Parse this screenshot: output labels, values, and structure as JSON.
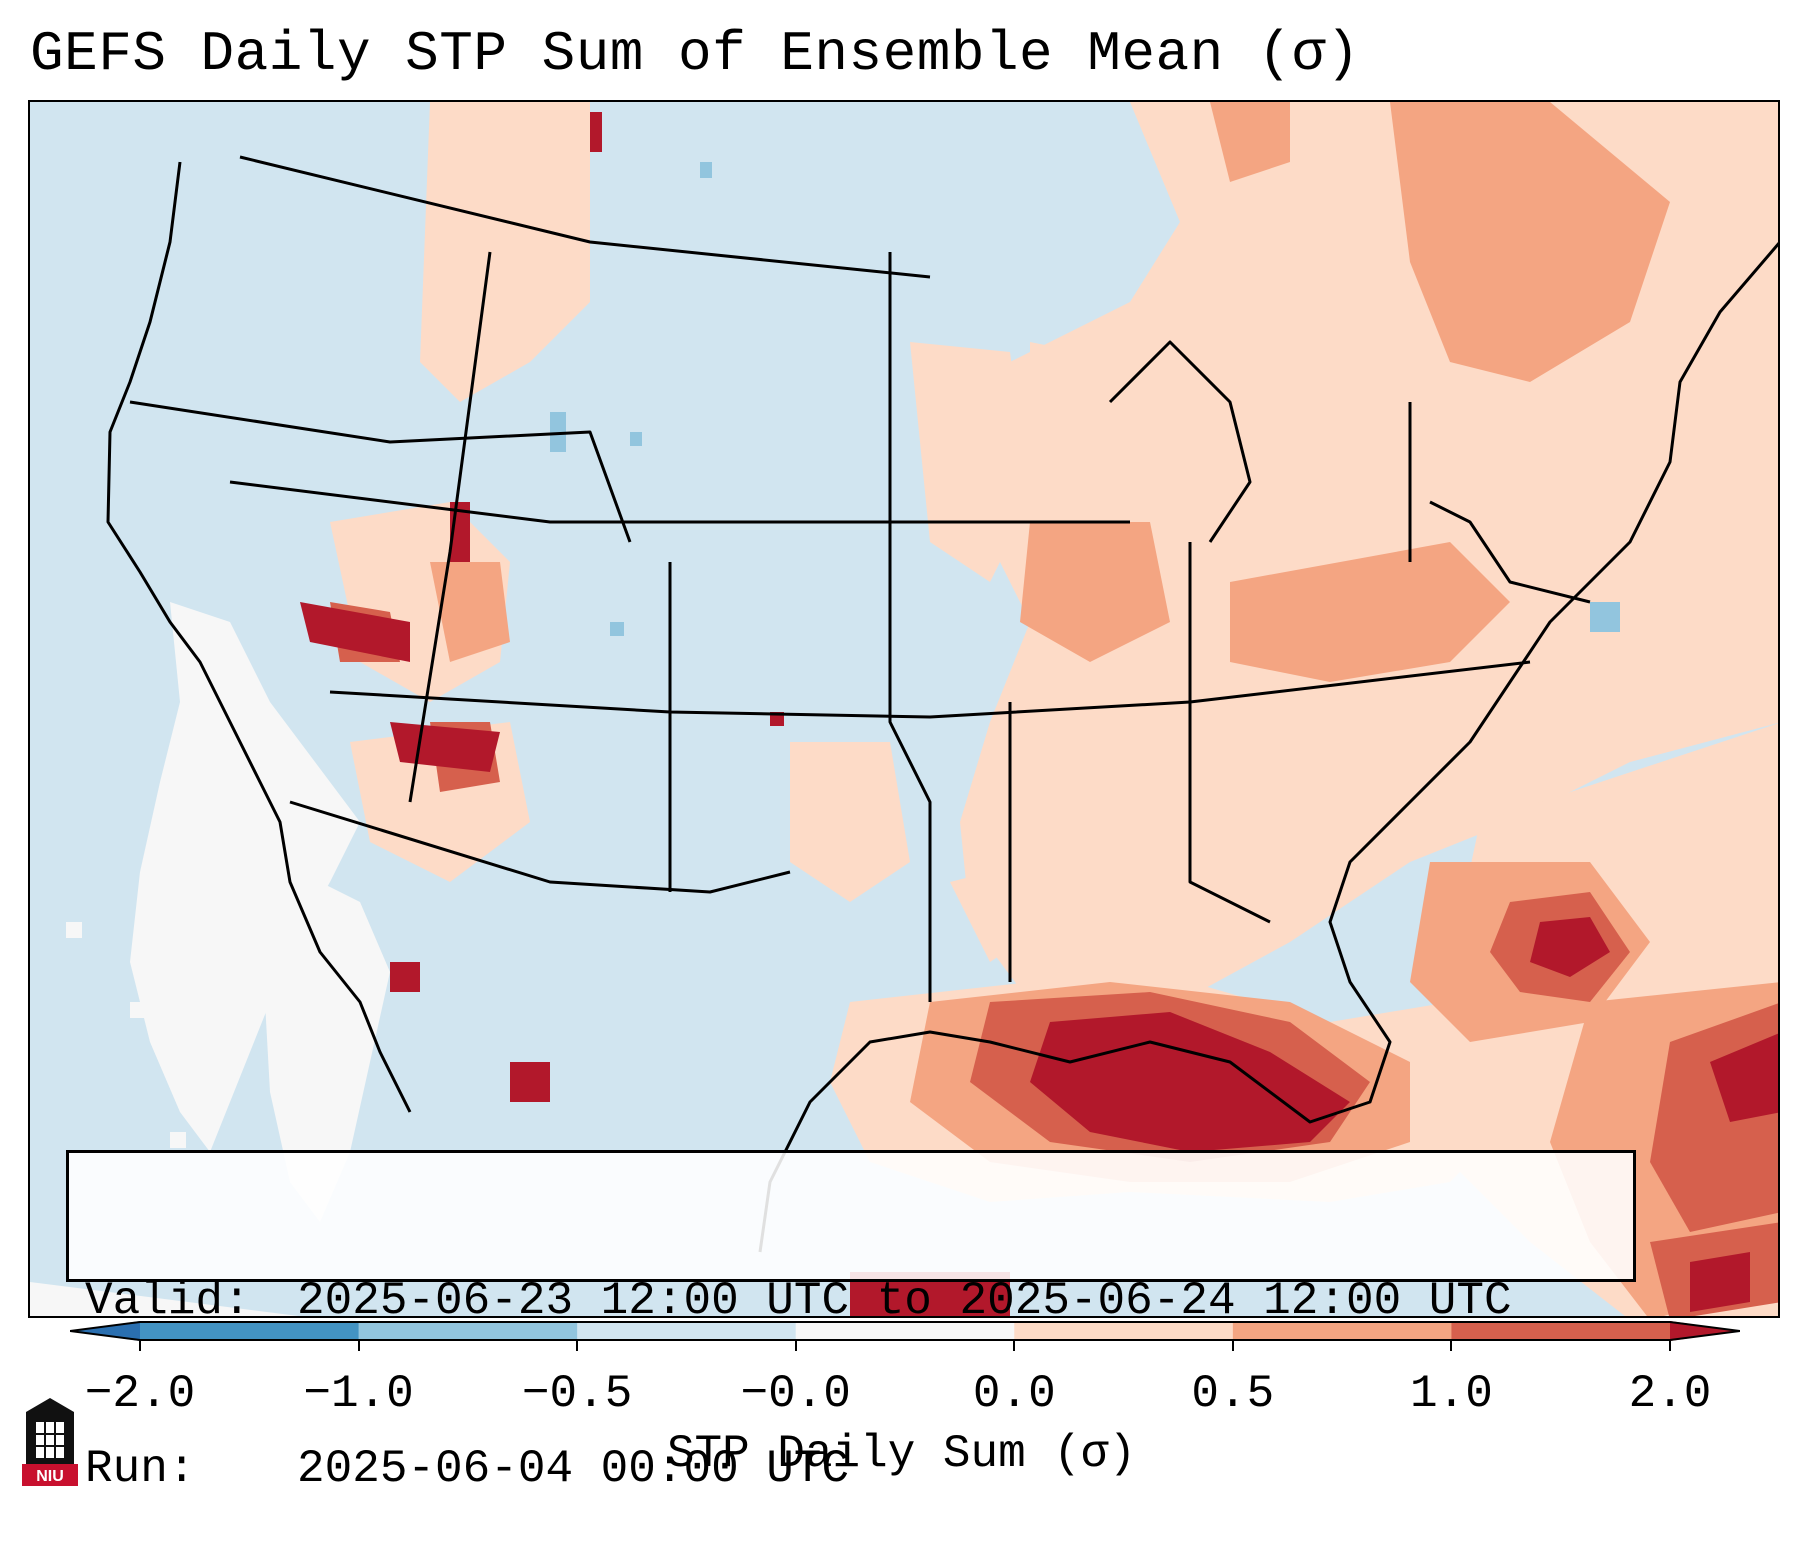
{
  "title": "GEFS Daily STP Sum of Ensemble Mean (σ)",
  "info": {
    "valid_label": "Valid:",
    "valid_value": "2025-06-23 12:00 UTC to 2025-06-24 12:00 UTC",
    "run_label": "Run:",
    "run_value": "2025-06-04 00:00 UTC"
  },
  "colorbar": {
    "label": "STP Daily Sum (σ)",
    "ticks": [
      "−2.0",
      "−1.0",
      "−0.5",
      "−0.0",
      "0.0",
      "0.5",
      "1.0",
      "2.0"
    ],
    "bins": [
      {
        "color": "#2a6fb0",
        "name": "lt-minus-2"
      },
      {
        "color": "#4393c3"
      },
      {
        "color": "#92c5de"
      },
      {
        "color": "#d1e5f0"
      },
      {
        "color": "#f7f7f7"
      },
      {
        "color": "#fddbc7"
      },
      {
        "color": "#f4a582"
      },
      {
        "color": "#d6604d"
      },
      {
        "color": "#b2182b"
      }
    ]
  },
  "colors": {
    "ocean_background": "#d1e5f0",
    "neutral": "#f7f7f7",
    "light_positive": "#fddbc7",
    "mid_positive": "#f4a582",
    "high_positive": "#d6604d",
    "max_positive": "#b2182b",
    "light_negative": "#92c5de",
    "mid_negative": "#4393c3"
  },
  "logo": {
    "text": "NIU"
  }
}
